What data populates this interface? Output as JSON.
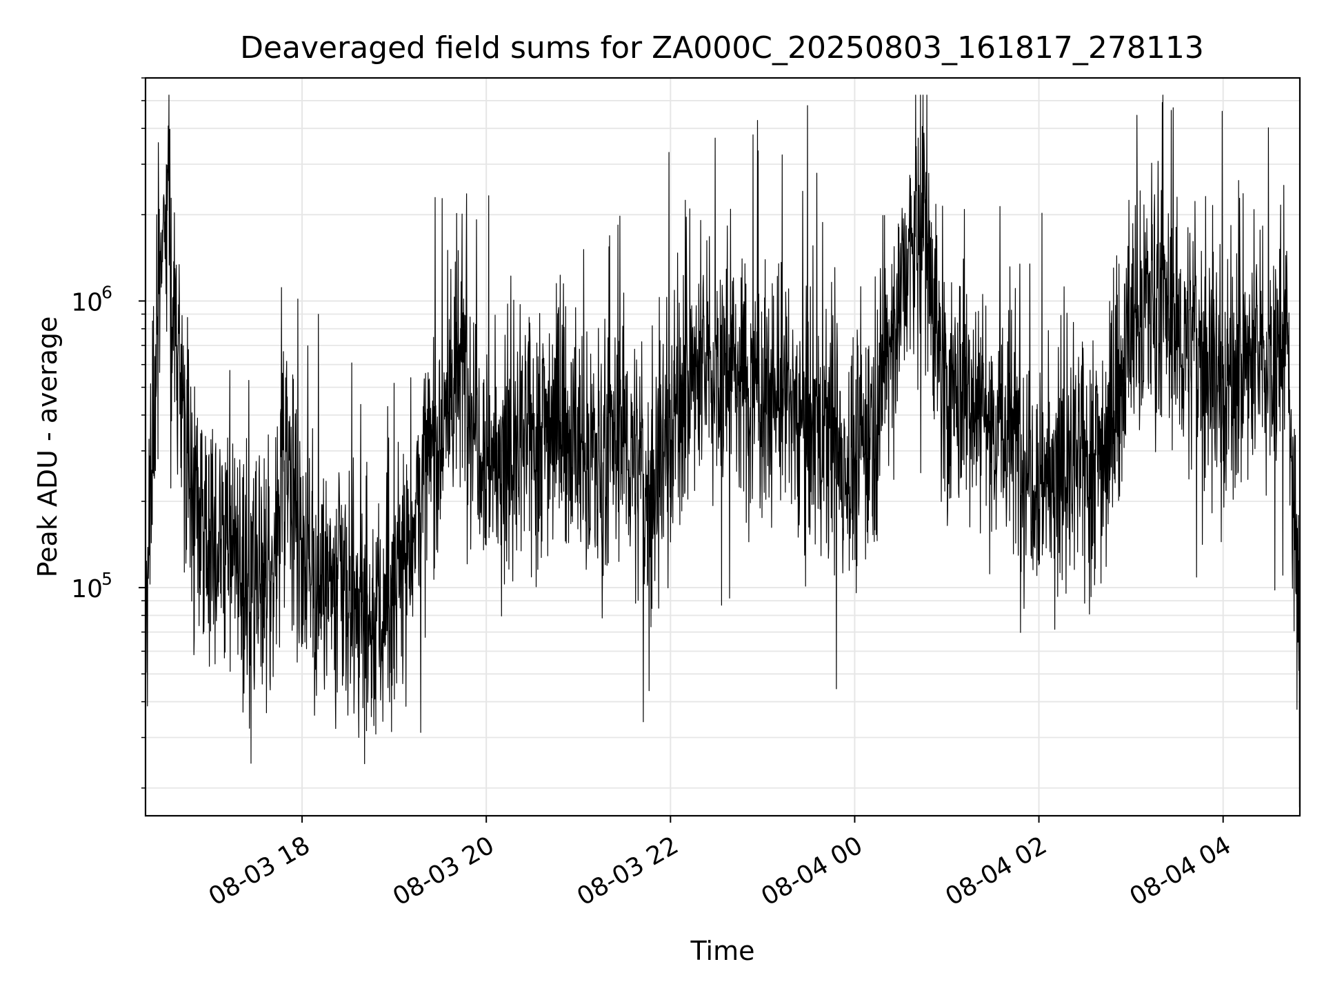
{
  "chart_data": {
    "type": "line",
    "title": "Deaveraged field sums for ZA000C_20250803_161817_278113",
    "xlabel": "Time",
    "ylabel": "Peak ADU - average",
    "xlim": [
      "2025-08-03 16:18",
      "2025-08-04 04:50"
    ],
    "ylim": [
      16000,
      6000000
    ],
    "yscale": "log",
    "grid": true,
    "line_color": "#000000",
    "x_ticks": [
      {
        "t": "2025-08-03 18:00",
        "label": "08-03 18"
      },
      {
        "t": "2025-08-03 20:00",
        "label": "08-03 20"
      },
      {
        "t": "2025-08-03 22:00",
        "label": "08-03 22"
      },
      {
        "t": "2025-08-04 00:00",
        "label": "08-04 00"
      },
      {
        "t": "2025-08-04 02:00",
        "label": "08-04 02"
      },
      {
        "t": "2025-08-04 04:00",
        "label": "08-04 04"
      }
    ],
    "y_ticks": [
      {
        "value": 100000,
        "base": "10",
        "exp": "5"
      },
      {
        "value": 1000000,
        "base": "10",
        "exp": "6"
      }
    ],
    "series": [
      {
        "x": [
          "2025-08-03 16:18",
          "2025-08-03 16:20",
          "2025-08-03 16:25",
          "2025-08-03 16:32",
          "2025-08-03 16:40",
          "2025-08-03 16:50",
          "2025-08-03 17:00",
          "2025-08-03 17:10",
          "2025-08-03 17:20",
          "2025-08-03 17:30",
          "2025-08-03 17:40",
          "2025-08-03 17:50",
          "2025-08-03 18:00",
          "2025-08-03 18:15",
          "2025-08-03 18:30",
          "2025-08-03 18:45",
          "2025-08-03 19:00",
          "2025-08-03 19:15",
          "2025-08-03 19:30",
          "2025-08-03 19:45",
          "2025-08-03 20:00",
          "2025-08-03 20:15",
          "2025-08-03 20:30",
          "2025-08-03 20:45",
          "2025-08-03 21:00",
          "2025-08-03 21:15",
          "2025-08-03 21:30",
          "2025-08-03 21:45",
          "2025-08-03 22:00",
          "2025-08-03 22:15",
          "2025-08-03 22:30",
          "2025-08-03 22:45",
          "2025-08-03 23:00",
          "2025-08-03 23:15",
          "2025-08-03 23:30",
          "2025-08-03 23:45",
          "2025-08-04 00:00",
          "2025-08-04 00:15",
          "2025-08-04 00:30",
          "2025-08-04 00:45",
          "2025-08-04 01:00",
          "2025-08-04 01:15",
          "2025-08-04 01:30",
          "2025-08-04 01:45",
          "2025-08-04 02:00",
          "2025-08-04 02:15",
          "2025-08-04 02:30",
          "2025-08-04 02:45",
          "2025-08-04 03:00",
          "2025-08-04 03:15",
          "2025-08-04 03:30",
          "2025-08-04 03:45",
          "2025-08-04 04:00",
          "2025-08-04 04:15",
          "2025-08-04 04:30",
          "2025-08-04 04:42",
          "2025-08-04 04:50"
        ],
        "y": [
          60000,
          110000,
          700000,
          2500000,
          500000,
          200000,
          180000,
          150000,
          100000,
          90000,
          110000,
          300000,
          130000,
          100000,
          90000,
          70000,
          90000,
          200000,
          350000,
          600000,
          300000,
          250000,
          350000,
          400000,
          300000,
          280000,
          350000,
          200000,
          380000,
          550000,
          600000,
          550000,
          480000,
          450000,
          380000,
          300000,
          260000,
          450000,
          1100000,
          2000000,
          420000,
          520000,
          380000,
          320000,
          260000,
          230000,
          280000,
          320000,
          800000,
          1100000,
          750000,
          700000,
          500000,
          600000,
          650000,
          700000,
          50000
        ]
      }
    ]
  }
}
